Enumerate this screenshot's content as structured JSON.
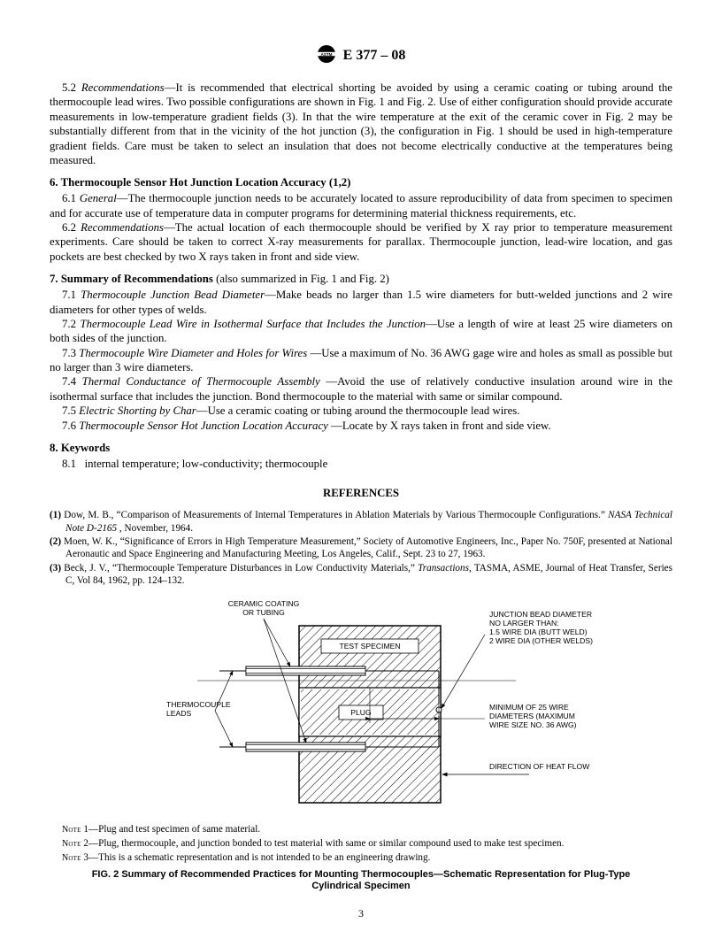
{
  "header": {
    "designation": "E 377 – 08"
  },
  "sections": {
    "s5_2": {
      "num": "5.2",
      "title": "Recommendations",
      "body": "—It is recommended that electrical shorting be avoided by using a ceramic coating or tubing around the thermocouple lead wires. Two possible configurations are shown in Fig. 1 and Fig. 2. Use of either configuration should provide accurate measurements in low-temperature gradient fields (3). In that the wire temperature at the exit of the ceramic cover in Fig. 2 may be substantially different from that in the vicinity of the hot junction (3), the configuration in Fig. 1 should be used in high-temperature gradient fields. Care must be taken to select an insulation that does not become electrically conductive at the temperatures being measured."
    },
    "s6": {
      "num": "6.",
      "title": "Thermocouple Sensor Hot Junction Location Accuracy (1,2)"
    },
    "s6_1": {
      "num": "6.1",
      "title": "General",
      "body": "—The thermocouple junction needs to be accurately located to assure reproducibility of data from specimen to specimen and for accurate use of temperature data in computer programs for determining material thickness requirements, etc."
    },
    "s6_2": {
      "num": "6.2",
      "title": "Recommendations",
      "body": "—The actual location of each thermocouple should be verified by X ray prior to temperature measurement experiments. Care should be taken to correct X-ray measurements for parallax. Thermocouple junction, lead-wire location, and gas pockets are best checked by two X rays taken in front and side view."
    },
    "s7": {
      "num": "7.",
      "title": "Summary of Recommendations",
      "suffix": "(also summarized in Fig. 1 and Fig. 2)"
    },
    "s7_1": {
      "num": "7.1",
      "title": "Thermocouple Junction Bead Diameter",
      "body": "—Make beads no larger than 1.5 wire diameters for butt-welded junctions and 2 wire diameters for other types of welds."
    },
    "s7_2": {
      "num": "7.2",
      "title": "Thermocouple Lead Wire in Isothermal Surface that Includes the Junction",
      "body": "—Use a length of wire at least 25 wire diameters on both sides of the junction."
    },
    "s7_3": {
      "num": "7.3",
      "title": "Thermocouple Wire Diameter and Holes for Wires ",
      "body": "—Use a maximum of No. 36 AWG gage wire and holes as small as possible but no larger than 3 wire diameters."
    },
    "s7_4": {
      "num": "7.4",
      "title": "Thermal Conductance of Thermocouple Assembly ",
      "body": "—Avoid the use of relatively conductive insulation around wire in the isothermal surface that includes the junction. Bond thermocouple to the material with same or similar compound."
    },
    "s7_5": {
      "num": "7.5",
      "title": "Electric Shorting by Char",
      "body": "—Use a ceramic coating or tubing around the thermocouple lead wires."
    },
    "s7_6": {
      "num": "7.6",
      "title": "Thermocouple Sensor Hot Junction Location Accuracy ",
      "body": "—Locate by X rays taken in front and side view."
    },
    "s8": {
      "num": "8.",
      "title": "Keywords"
    },
    "s8_1": {
      "num": "8.1",
      "body": "internal temperature; low-conductivity; thermocouple"
    }
  },
  "references": {
    "title": "REFERENCES",
    "items": [
      {
        "n": "(1)",
        "pre": "Dow, M. B., “Comparison of Measurements of Internal Temperatures in Ablation Materials by Various Thermocouple Configurations.” ",
        "ital": "NASA Technical Note D-2165 ",
        "post": ", November, 1964."
      },
      {
        "n": "(2)",
        "pre": "Moen, W. K., “Significance of Errors in High Temperature Measurement,” Society of Automotive Engineers, Inc., Paper No. 750F, presented at National Aeronautic and Space Engineering and Manufacturing Meeting, Los Angeles, Calif., Sept. 23 to 27, 1963.",
        "ital": "",
        "post": ""
      },
      {
        "n": "(3)",
        "pre": "Beck, J. V., “Thermocouple Temperature Disturbances in Low Conductivity Materials,” ",
        "ital": "Transactions",
        "post": ", TASMA, ASME, Journal of Heat Transfer, Series C, Vol 84, 1962, pp. 124–132."
      }
    ]
  },
  "figure": {
    "labels": {
      "ceramic": "CERAMIC COATING\nOR TUBING",
      "testspec": "TEST SPECIMEN",
      "plug": "PLUG",
      "leads": "THERMOCOUPLE\nLEADS",
      "junction": "JUNCTION BEAD DIAMETER\nNO LARGER THAN:\n1.5 WIRE DIA (BUTT WELD)\n2 WIRE DIA (OTHER WELDS)",
      "min25": "MINIMUM OF 25 WIRE\nDIAMETERS (MAXIMUM\nWIRE SIZE NO. 36 AWG)",
      "heatflow": "DIRECTION OF HEAT FLOW"
    },
    "type": "schematic-diagram",
    "colors": {
      "stroke": "#000000",
      "hatch": "#000000",
      "bg": "#ffffff"
    },
    "linewidths": {
      "thin": 0.7,
      "med": 1.1,
      "thick": 1.5
    }
  },
  "notes": {
    "n1": "1—Plug and test specimen of same material.",
    "n2": "2—Plug, thermocouple, and junction bonded to test material with same or similar compound used to make test specimen.",
    "n3": "3—This is a schematic representation and is not intended to be an engineering drawing."
  },
  "figcaption": "FIG. 2   Summary of Recommended Practices for Mounting Thermocouples—Schematic Representation for Plug-Type Cylindrical Specimen",
  "pagenum": "3"
}
